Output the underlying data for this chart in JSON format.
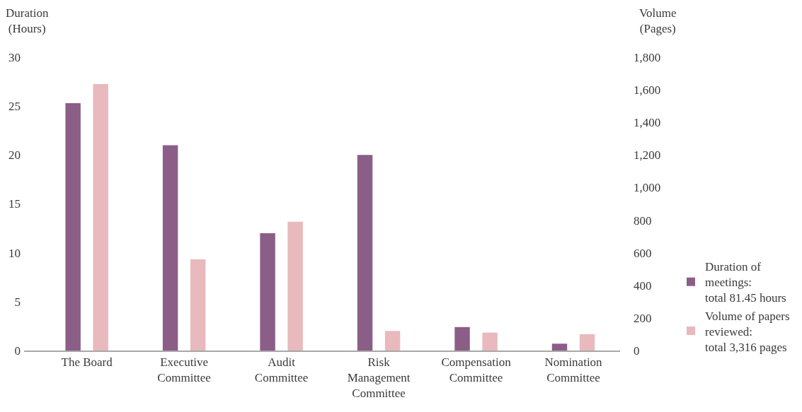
{
  "chart_data": {
    "type": "bar",
    "categories": [
      "The Board",
      "Executive\nCommittee",
      "Audit\nCommittee",
      "Risk\nManagement\nCommittee",
      "Compensation\nCommittee",
      "Nomination\nCommittee"
    ],
    "series": [
      {
        "name": "Duration of\nmeetings:\ntotal 81.45 hours",
        "color": "#8b5e88",
        "values": [
          25.3,
          21.0,
          12.0,
          20.0,
          2.4,
          0.7
        ]
      },
      {
        "name": "Volume of papers\nreviewed:\ntotal 3,316 pages",
        "color": "#e8b9bd",
        "axis": "y2",
        "values": [
          1635,
          560,
          790,
          120,
          110,
          100
        ]
      }
    ],
    "ylabel": "Duration\n(Hours)",
    "y2label": "Volume\n(Pages)",
    "ylim": [
      0,
      30
    ],
    "yticks": [
      0,
      5,
      10,
      15,
      20,
      25,
      30
    ],
    "y2lim": [
      0,
      1800
    ],
    "y2ticks": [
      {
        "value": 0,
        "label": "0"
      },
      {
        "value": 200,
        "label": "200"
      },
      {
        "value": 400,
        "label": "400"
      },
      {
        "value": 600,
        "label": "600"
      },
      {
        "value": 800,
        "label": "800"
      },
      {
        "value": 1000,
        "label": "1,000"
      },
      {
        "value": 1200,
        "label": "1,200"
      },
      {
        "value": 1400,
        "label": "1,400"
      },
      {
        "value": 1600,
        "label": "1,600"
      },
      {
        "value": 1800,
        "label": "1,800"
      }
    ],
    "legend": "right"
  }
}
